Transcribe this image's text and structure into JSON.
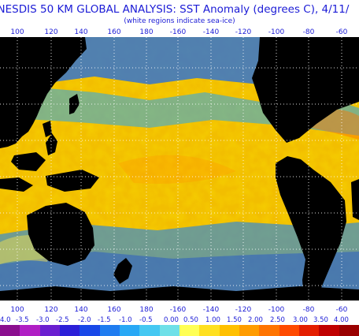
{
  "title": "/NESDIS 50 KM GLOBAL ANALYSIS: SST Anomaly (degrees C), 4/11/",
  "subtitle": "(white regions indicate sea-ice)",
  "longitude_labels": [
    "100",
    "120",
    "140",
    "160",
    "180",
    "-160",
    "-140",
    "-120",
    "-100",
    "-80",
    "-60"
  ],
  "scale_labels": [
    "4.0",
    "-3.5",
    "-3.0",
    "-2.5",
    "-2.0",
    "-1.5",
    "-1.0",
    "-0.5",
    "0.00",
    "0.50",
    "1.00",
    "1.50",
    "2.00",
    "2.50",
    "3.00",
    "3.50",
    "4.00"
  ],
  "colorbar_colors": [
    "#8b0f8f",
    "#b01fc4",
    "#6a1fd0",
    "#2b1fd8",
    "#1848e8",
    "#1f7cf0",
    "#28a8f5",
    "#45c8f2",
    "#6fe0e8",
    "#ffff55",
    "#ffe020",
    "#ffc000",
    "#ff9c00",
    "#ff7400",
    "#ff4a00",
    "#e41e00",
    "#c00000",
    "#9a0000"
  ],
  "map_colors": {
    "land": "#000000",
    "base": "#f7c000",
    "warm": "#ff9a00",
    "cool": "#27a0ee",
    "deep_cool": "#1556dc",
    "grid": "#ffffff"
  }
}
